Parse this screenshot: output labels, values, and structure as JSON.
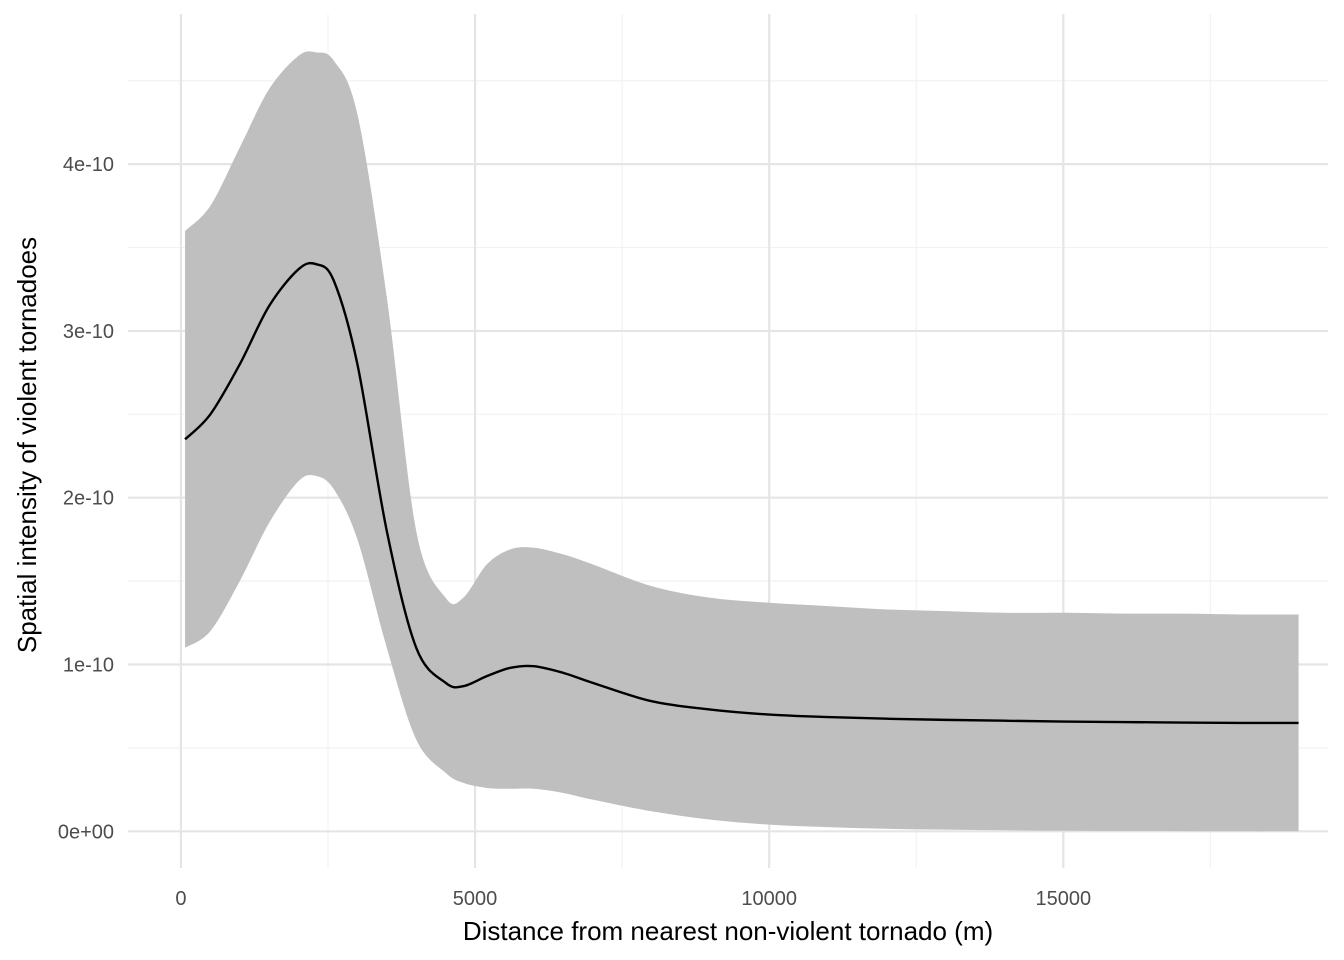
{
  "chart_data": {
    "type": "line",
    "title": "",
    "xlabel": "Distance from nearest non-violent tornado (m)",
    "ylabel": "Spatial intensity of violent tornadoes",
    "xlim": [
      -900,
      19500
    ],
    "ylim": [
      -2.2e-11,
      4.9e-10
    ],
    "x_ticks": [
      {
        "value": 0,
        "label": "0"
      },
      {
        "value": 5000,
        "label": "5000"
      },
      {
        "value": 10000,
        "label": "10000"
      },
      {
        "value": 15000,
        "label": "15000"
      }
    ],
    "x_minor_ticks": [
      2500,
      7500,
      12500,
      17500
    ],
    "y_ticks": [
      {
        "value": 0,
        "label": "0e+00"
      },
      {
        "value": 1e-10,
        "label": "1e-10"
      },
      {
        "value": 2e-10,
        "label": "2e-10"
      },
      {
        "value": 3e-10,
        "label": "3e-10"
      },
      {
        "value": 4e-10,
        "label": "4e-10"
      }
    ],
    "y_minor_ticks": [
      5e-11,
      1.5e-10,
      2.5e-10,
      3.5e-10,
      4.5e-10
    ],
    "grid": true,
    "colors": {
      "line": "#000000",
      "band": "#bebebe",
      "grid_major": "#e5e5e5",
      "grid_minor": "#f2f2f2"
    },
    "series": [
      {
        "x": [
          70,
          500,
          1000,
          1500,
          2000,
          2300,
          2600,
          3000,
          3500,
          4000,
          4500,
          4800,
          5200,
          5600,
          6000,
          6500,
          7000,
          8000,
          9000,
          10000,
          11000,
          12000,
          13000,
          14000,
          15000,
          16000,
          17000,
          18000,
          19000
        ],
        "y": [
          2.35e-10,
          2.5e-10,
          2.8e-10,
          3.15e-10,
          3.37e-10,
          3.4e-10,
          3.3e-10,
          2.8e-10,
          1.8e-10,
          1.1e-10,
          8.9e-11,
          8.7e-11,
          9.3e-11,
          9.8e-11,
          9.9e-11,
          9.5e-11,
          8.9e-11,
          7.8e-11,
          7.3e-11,
          7e-11,
          6.85e-11,
          6.75e-11,
          6.68e-11,
          6.63e-11,
          6.58e-11,
          6.55e-11,
          6.52e-11,
          6.5e-11,
          6.5e-11
        ],
        "upper": [
          3.6e-10,
          3.75e-10,
          4.1e-10,
          4.45e-10,
          4.65e-10,
          4.67e-10,
          4.62e-10,
          4.3e-10,
          3.2e-10,
          1.8e-10,
          1.4e-10,
          1.4e-10,
          1.6e-10,
          1.69e-10,
          1.7e-10,
          1.66e-10,
          1.6e-10,
          1.47e-10,
          1.4e-10,
          1.37e-10,
          1.35e-10,
          1.33e-10,
          1.32e-10,
          1.31e-10,
          1.31e-10,
          1.305e-10,
          1.305e-10,
          1.3e-10,
          1.3e-10
        ],
        "lower": [
          1.1e-10,
          1.2e-10,
          1.5e-10,
          1.85e-10,
          2.1e-10,
          2.13e-10,
          2.05e-10,
          1.75e-10,
          1.1e-10,
          5.5e-11,
          3.5e-11,
          2.9e-11,
          2.6e-11,
          2.55e-11,
          2.55e-11,
          2.3e-11,
          1.9e-11,
          1.2e-11,
          7e-12,
          4e-12,
          2.5e-12,
          1.5e-12,
          1e-12,
          6e-13,
          3e-13,
          2e-13,
          1e-13,
          0,
          0
        ]
      }
    ]
  }
}
